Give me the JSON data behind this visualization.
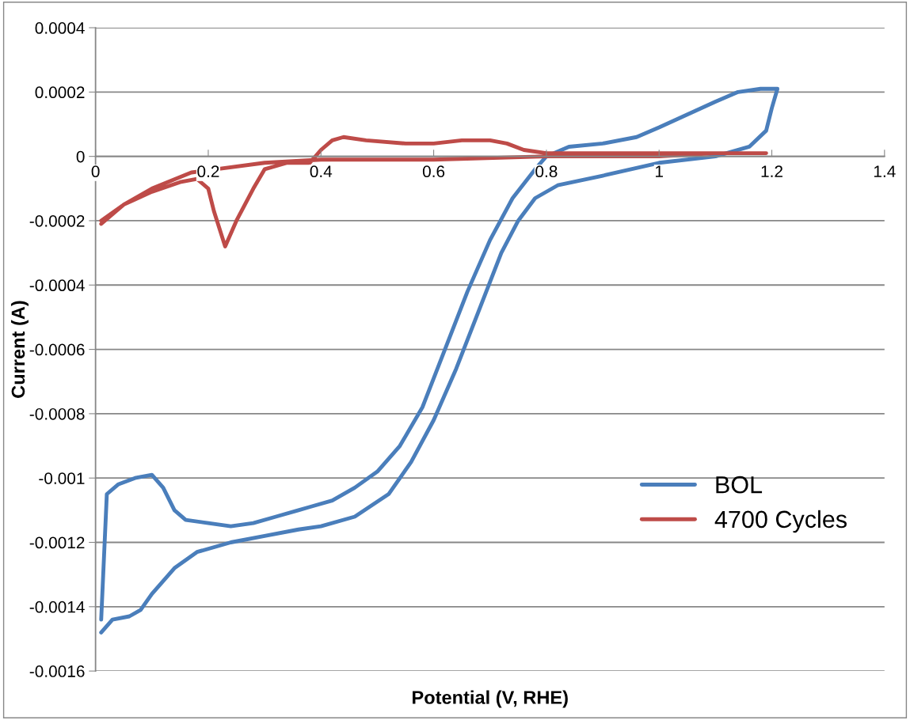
{
  "chart_data": {
    "type": "line",
    "xlabel": "Potential (V, RHE)",
    "ylabel": "Current (A)",
    "xlim": [
      0,
      1.4
    ],
    "xticks": [
      0,
      0.2,
      0.4,
      0.6,
      0.8,
      1,
      1.2,
      1.4
    ],
    "ylim": [
      -0.0016,
      0.0004
    ],
    "yticks": [
      -0.0016,
      -0.0014,
      -0.0012,
      -0.001,
      -0.0008,
      -0.0006,
      -0.0004,
      -0.0002,
      0,
      0.0002,
      0.0004
    ],
    "grid": "y",
    "legend": "right",
    "marker": "none",
    "line_style": "solid",
    "series": [
      {
        "name": "BOL",
        "color": "#4a7ebb",
        "x": [
          0.01,
          0.02,
          0.04,
          0.07,
          0.1,
          0.12,
          0.14,
          0.16,
          0.2,
          0.24,
          0.28,
          0.32,
          0.36,
          0.38,
          0.42,
          0.46,
          0.5,
          0.54,
          0.58,
          0.62,
          0.66,
          0.7,
          0.74,
          0.78,
          0.8,
          0.84,
          0.9,
          0.96,
          1.0,
          1.05,
          1.1,
          1.14,
          1.18,
          1.21,
          1.2,
          1.19,
          1.16,
          1.1,
          1.0,
          0.9,
          0.82,
          0.78,
          0.75,
          0.72,
          0.68,
          0.64,
          0.6,
          0.56,
          0.52,
          0.46,
          0.4,
          0.36,
          0.3,
          0.24,
          0.18,
          0.14,
          0.1,
          0.08,
          0.06,
          0.03,
          0.01
        ],
        "values": [
          -0.00144,
          -0.00105,
          -0.00102,
          -0.001,
          -0.00099,
          -0.00103,
          -0.0011,
          -0.00113,
          -0.00114,
          -0.00115,
          -0.00114,
          -0.00112,
          -0.0011,
          -0.00109,
          -0.00107,
          -0.00103,
          -0.00098,
          -0.0009,
          -0.00078,
          -0.0006,
          -0.00042,
          -0.00026,
          -0.00013,
          -4e-05,
          0.0,
          3e-05,
          4e-05,
          6e-05,
          9e-05,
          0.00013,
          0.00017,
          0.0002,
          0.00021,
          0.00021,
          0.00015,
          8e-05,
          3e-05,
          0.0,
          -2e-05,
          -6e-05,
          -9e-05,
          -0.00013,
          -0.0002,
          -0.0003,
          -0.00048,
          -0.00066,
          -0.00082,
          -0.00095,
          -0.00105,
          -0.00112,
          -0.00115,
          -0.00116,
          -0.00118,
          -0.0012,
          -0.00123,
          -0.00128,
          -0.00136,
          -0.00141,
          -0.00143,
          -0.00144,
          -0.00148
        ]
      },
      {
        "name": "4700 Cycles",
        "color": "#be4b48",
        "x": [
          0.01,
          0.05,
          0.1,
          0.15,
          0.18,
          0.2,
          0.21,
          0.23,
          0.25,
          0.28,
          0.3,
          0.34,
          0.38,
          0.4,
          0.42,
          0.44,
          0.48,
          0.55,
          0.6,
          0.65,
          0.7,
          0.73,
          0.76,
          0.8,
          0.9,
          1.0,
          1.1,
          1.19,
          1.1,
          1.0,
          0.8,
          0.6,
          0.4,
          0.3,
          0.17,
          0.1,
          0.05,
          0.01
        ],
        "values": [
          -0.00021,
          -0.00015,
          -0.00011,
          -8e-05,
          -7e-05,
          -0.0001,
          -0.00017,
          -0.00028,
          -0.0002,
          -0.0001,
          -4e-05,
          -2e-05,
          -2e-05,
          2e-05,
          5e-05,
          6e-05,
          5e-05,
          4e-05,
          4e-05,
          5e-05,
          5e-05,
          4e-05,
          2e-05,
          1e-05,
          1e-05,
          1e-05,
          1e-05,
          1e-05,
          1e-05,
          0.0,
          0.0,
          -1e-05,
          -1e-05,
          -2e-05,
          -5e-05,
          -0.0001,
          -0.00015,
          -0.0002
        ]
      }
    ]
  }
}
